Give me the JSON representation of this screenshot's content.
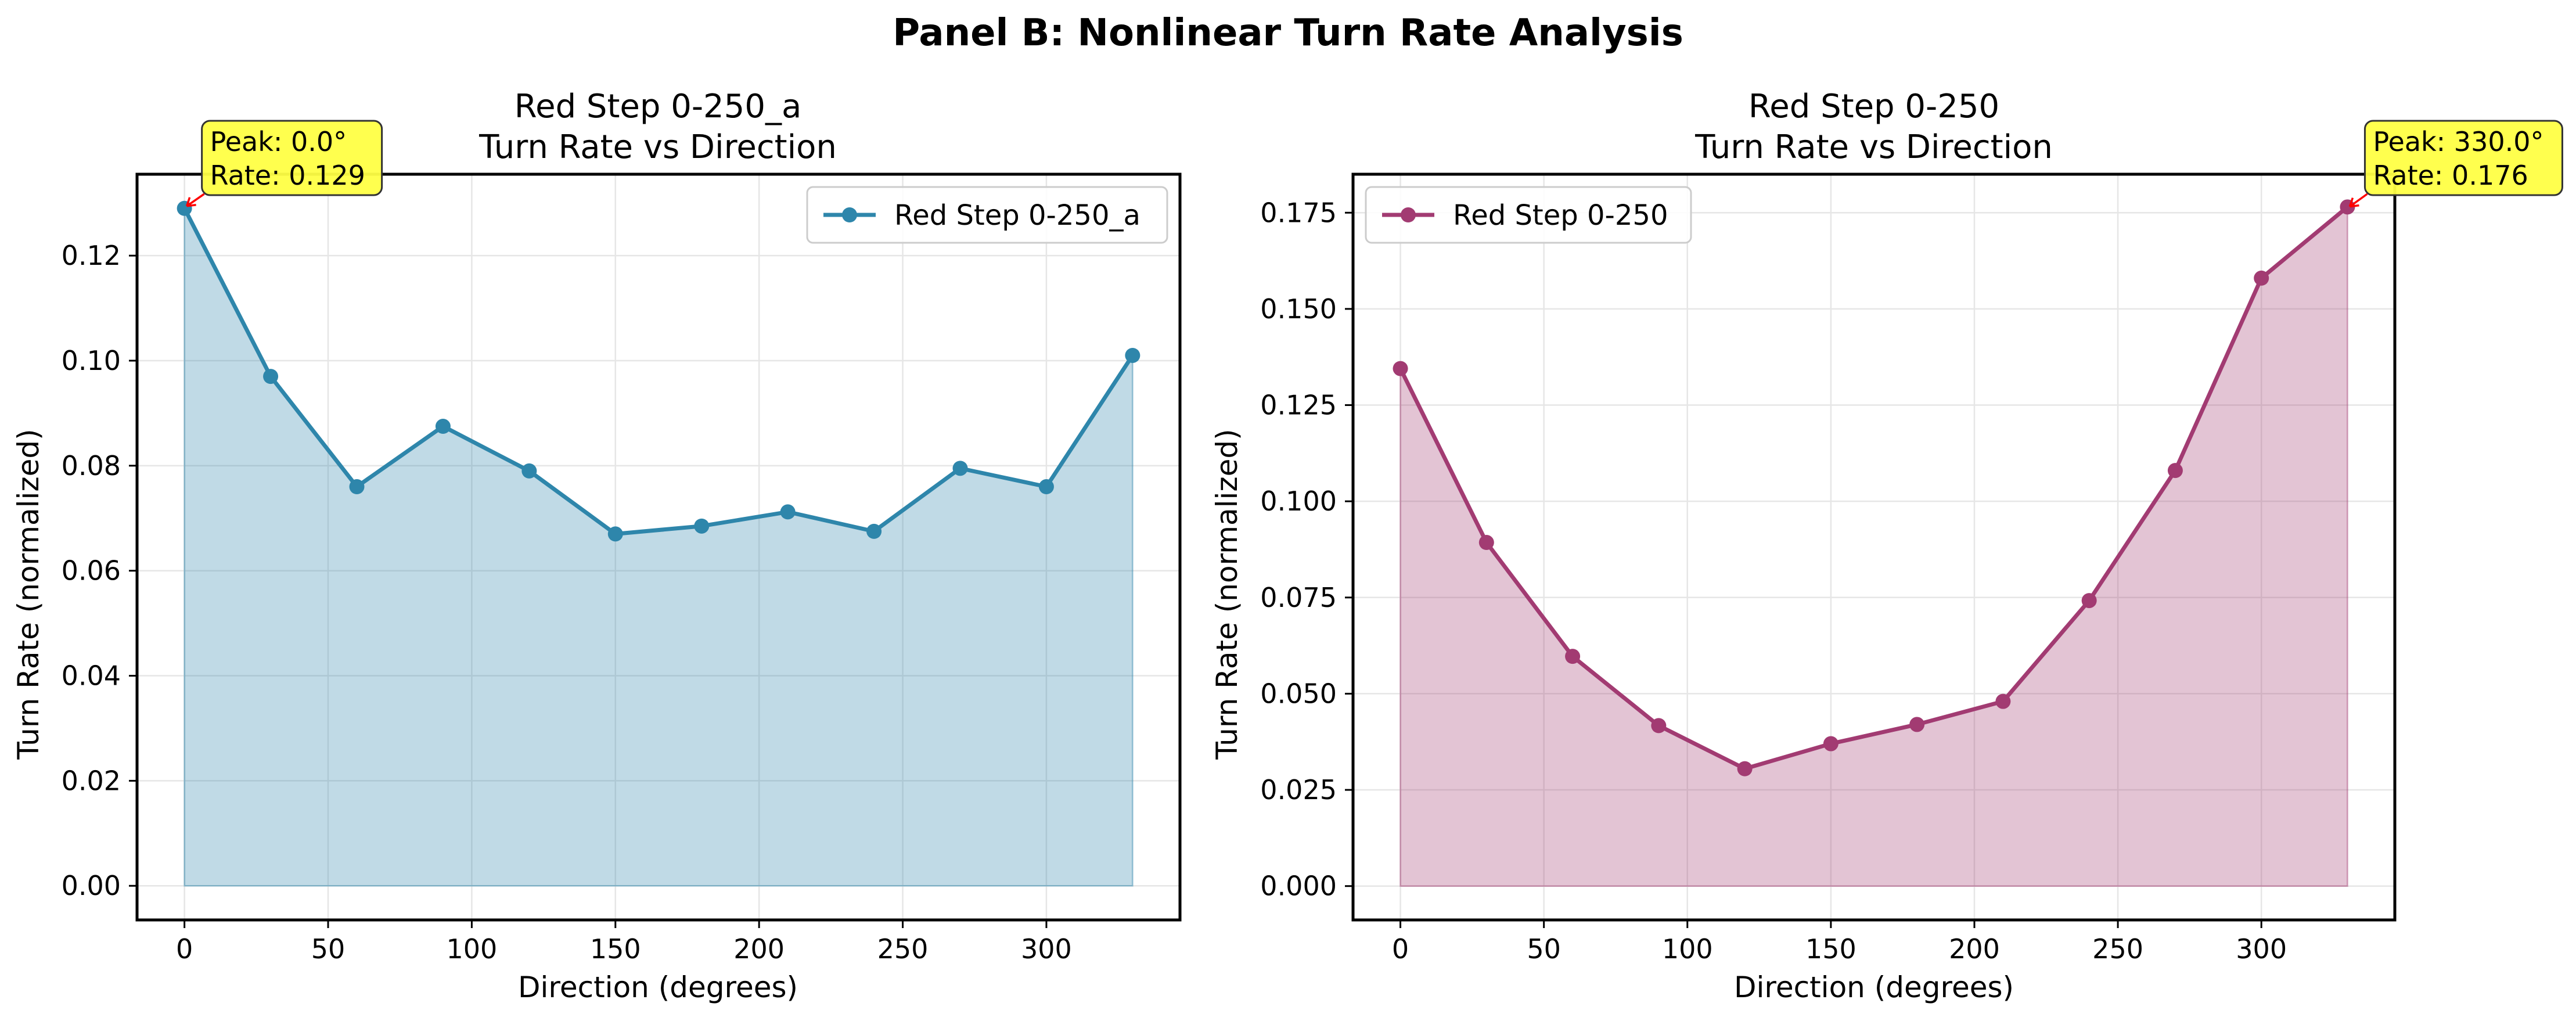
{
  "suptitle": "Panel B: Nonlinear Turn Rate Analysis",
  "chart_data": [
    {
      "type": "line",
      "title_line1": "Red Step 0-250_a",
      "title_line2": "Turn Rate vs Direction",
      "xlabel": "Direction (degrees)",
      "ylabel": "Turn Rate (normalized)",
      "xlim": [
        -16.5,
        346.5
      ],
      "ylim": [
        -0.0065,
        0.1355
      ],
      "xticks": [
        0,
        50,
        100,
        150,
        200,
        250,
        300
      ],
      "xtick_labels": [
        "0",
        "50",
        "100",
        "150",
        "200",
        "250",
        "300"
      ],
      "yticks": [
        0,
        0.02,
        0.04,
        0.06,
        0.08,
        0.1,
        0.12
      ],
      "ytick_labels": [
        "0.00",
        "0.02",
        "0.04",
        "0.06",
        "0.08",
        "0.10",
        "0.12"
      ],
      "grid": true,
      "legend_position": "top-right",
      "series": [
        {
          "name": "Red Step 0-250_a",
          "color": "#2e86ab",
          "fill_color": "#2e86ab",
          "x": [
            0,
            30,
            60,
            90,
            120,
            150,
            180,
            210,
            240,
            270,
            300,
            330
          ],
          "values": [
            0.129,
            0.097,
            0.076,
            0.0875,
            0.079,
            0.067,
            0.0685,
            0.0712,
            0.0675,
            0.0795,
            0.076,
            0.101
          ]
        }
      ],
      "annotation": {
        "line1": "Peak: 0.0°",
        "line2": "Rate: 0.129",
        "x": 0,
        "y": 0.129,
        "box_color": "#ffff44",
        "arrow_color": "#ff0000"
      }
    },
    {
      "type": "line",
      "title_line1": "Red Step 0-250",
      "title_line2": "Turn Rate vs Direction",
      "xlabel": "Direction (degrees)",
      "ylabel": "Turn Rate (normalized)",
      "xlim": [
        -16.5,
        346.5
      ],
      "ylim": [
        -0.0088,
        0.185
      ],
      "xticks": [
        0,
        50,
        100,
        150,
        200,
        250,
        300
      ],
      "xtick_labels": [
        "0",
        "50",
        "100",
        "150",
        "200",
        "250",
        "300"
      ],
      "yticks": [
        0,
        0.025,
        0.05,
        0.075,
        0.1,
        0.125,
        0.15,
        0.175
      ],
      "ytick_labels": [
        "0.000",
        "0.025",
        "0.050",
        "0.075",
        "0.100",
        "0.125",
        "0.150",
        "0.175"
      ],
      "grid": true,
      "legend_position": "top-left",
      "series": [
        {
          "name": "Red Step 0-250",
          "color": "#a23b72",
          "fill_color": "#a23b72",
          "x": [
            0,
            30,
            60,
            90,
            120,
            150,
            180,
            210,
            240,
            270,
            300,
            330
          ],
          "values": [
            0.1345,
            0.0893,
            0.0597,
            0.0417,
            0.0305,
            0.037,
            0.042,
            0.048,
            0.0742,
            0.108,
            0.158,
            0.1765
          ]
        }
      ],
      "annotation": {
        "line1": "Peak: 330.0°",
        "line2": "Rate: 0.176",
        "x": 330,
        "y": 0.176,
        "box_color": "#ffff44",
        "arrow_color": "#ff0000"
      }
    }
  ]
}
